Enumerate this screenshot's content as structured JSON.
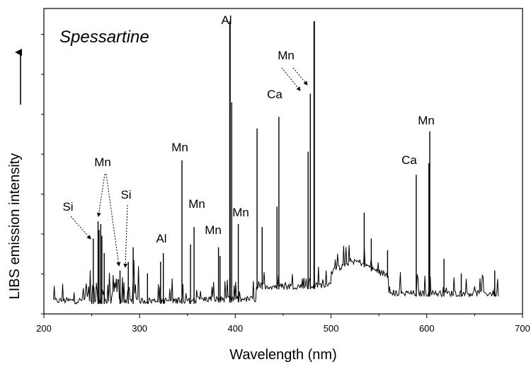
{
  "chart_data": {
    "type": "line",
    "title": "Spessartine",
    "xlabel": "Wavelength (nm)",
    "ylabel": "LIBS emission intensity",
    "xlim": [
      200,
      700
    ],
    "ylim": [
      0,
      100
    ],
    "x_ticks": [
      200,
      300,
      400,
      500,
      600,
      700
    ],
    "y_ticks_labeled": false,
    "grid": false,
    "legend": "none",
    "line_color": "#000000",
    "x_range_data": [
      210,
      675
    ],
    "baseline_regions": [
      {
        "x_start": 210,
        "x_end": 360,
        "level": 2.5
      },
      {
        "x_start": 360,
        "x_end": 422,
        "level": 3
      },
      {
        "x_start": 422,
        "x_end": 500,
        "level": 7.5
      },
      {
        "x_start": 500,
        "x_end": 560,
        "level": 11
      },
      {
        "x_start": 560,
        "x_end": 675,
        "level": 5
      }
    ],
    "lines": [
      {
        "x": 251.6,
        "y": 25
      },
      {
        "x": 256.6,
        "y": 31
      },
      {
        "x": 257.6,
        "y": 28
      },
      {
        "x": 259.4,
        "y": 30
      },
      {
        "x": 260.6,
        "y": 26
      },
      {
        "x": 263.0,
        "y": 20
      },
      {
        "x": 279.5,
        "y": 14
      },
      {
        "x": 288.2,
        "y": 17
      },
      {
        "x": 293.3,
        "y": 22
      },
      {
        "x": 308.2,
        "y": 13
      },
      {
        "x": 321.9,
        "y": 17
      },
      {
        "x": 324.8,
        "y": 20
      },
      {
        "x": 344.2,
        "y": 52
      },
      {
        "x": 353.2,
        "y": 23
      },
      {
        "x": 356.9,
        "y": 29
      },
      {
        "x": 382.4,
        "y": 22
      },
      {
        "x": 384.0,
        "y": 19
      },
      {
        "x": 394.4,
        "y": 100
      },
      {
        "x": 396.2,
        "y": 72
      },
      {
        "x": 403.1,
        "y": 30
      },
      {
        "x": 422.7,
        "y": 63
      },
      {
        "x": 428.0,
        "y": 29
      },
      {
        "x": 443.5,
        "y": 36
      },
      {
        "x": 445.5,
        "y": 67
      },
      {
        "x": 476.0,
        "y": 55
      },
      {
        "x": 478.3,
        "y": 75
      },
      {
        "x": 482.4,
        "y": 100
      },
      {
        "x": 534.6,
        "y": 34
      },
      {
        "x": 542.0,
        "y": 25
      },
      {
        "x": 559.0,
        "y": 21
      },
      {
        "x": 589.0,
        "y": 47
      },
      {
        "x": 602.2,
        "y": 51
      },
      {
        "x": 603.1,
        "y": 62
      },
      {
        "x": 618.0,
        "y": 18
      },
      {
        "x": 636.0,
        "y": 13
      },
      {
        "x": 671.0,
        "y": 14
      }
    ],
    "annotations": [
      {
        "text": "Si",
        "wavelength": 251.6
      },
      {
        "text": "Mn",
        "wavelength": 259.4
      },
      {
        "text": "Si",
        "wavelength": 288.2
      },
      {
        "text": "Al",
        "wavelength": 324.8
      },
      {
        "text": "Mn",
        "wavelength": 344.2
      },
      {
        "text": "Mn",
        "wavelength": 356.9
      },
      {
        "text": "Mn",
        "wavelength": 382.4
      },
      {
        "text": "Al",
        "wavelength": 394.4
      },
      {
        "text": "Mn",
        "wavelength": 403.1
      },
      {
        "text": "Ca",
        "wavelength": 445.5
      },
      {
        "text": "Mn",
        "wavelength": 478.3
      },
      {
        "text": "Ca",
        "wavelength": 589.0
      },
      {
        "text": "Mn",
        "wavelength": 602.2
      }
    ]
  }
}
